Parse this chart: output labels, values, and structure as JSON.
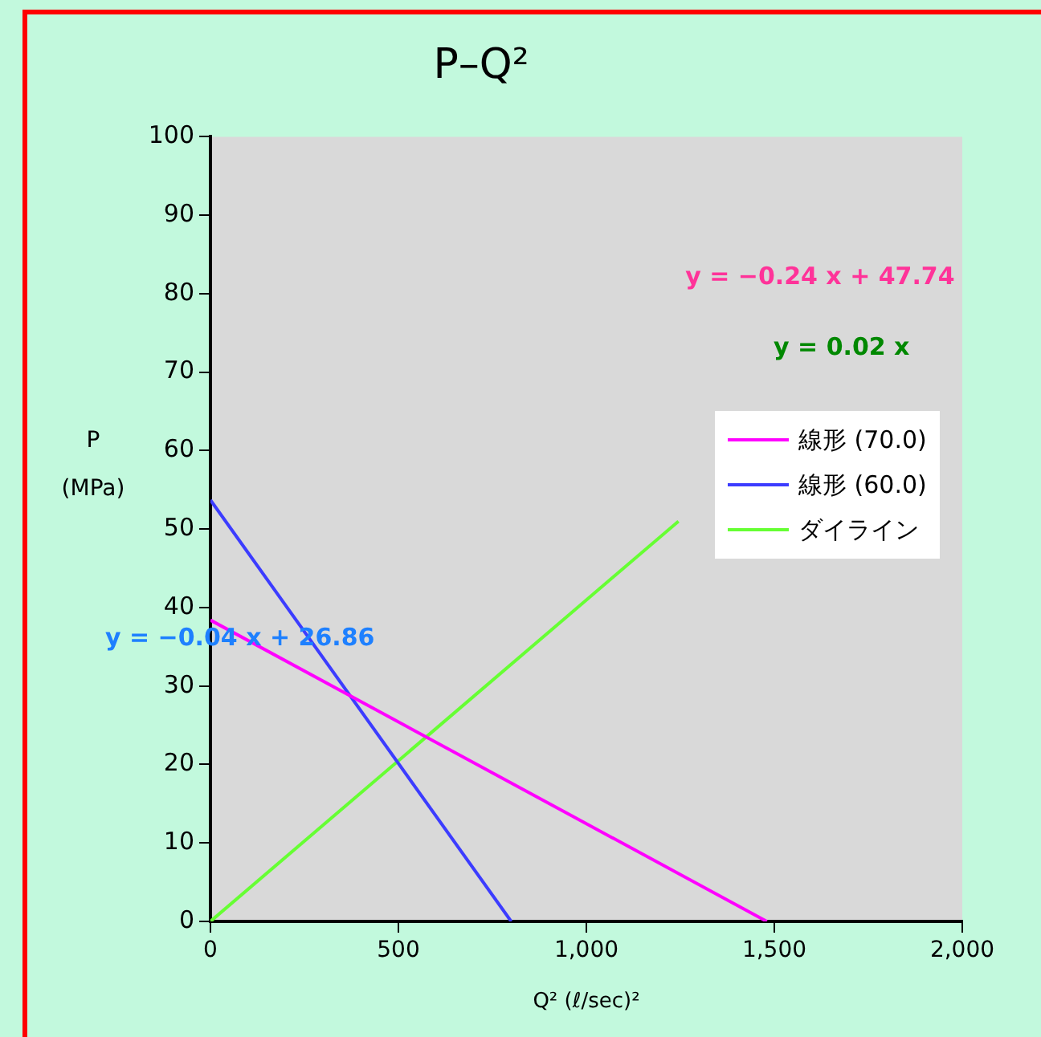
{
  "chart_data": {
    "type": "line",
    "title": "P–Q²",
    "xlabel": "Q² (ℓ/sec)²",
    "ylabel": "P\n(MPa)",
    "xlim": [
      0,
      2000
    ],
    "xticks": [
      0,
      500,
      {
        "value": 1000,
        "label": "1,000"
      },
      {
        "value": 1500,
        "label": "1,500"
      },
      {
        "value": 2000,
        "label": "2,000"
      }
    ],
    "ylim": [
      0,
      100
    ],
    "yticks": [
      0,
      10,
      20,
      30,
      40,
      50,
      60,
      70,
      80,
      90,
      100
    ],
    "series": [
      {
        "name": "線形 (70.0)",
        "color": "#ff00ff",
        "x": [
          0,
          1480
        ],
        "values": [
          38.4,
          0
        ]
      },
      {
        "name": "線形 (60.0)",
        "color": "#3c3cff",
        "x": [
          0,
          800
        ],
        "values": [
          53.7,
          0
        ]
      },
      {
        "name": "ダイライン",
        "color": "#66ff33",
        "x": [
          0,
          1245
        ],
        "values": [
          0,
          51
        ]
      }
    ],
    "annotations": [
      "y = −0.24 x + 47.74",
      "y = 0.02 x",
      "y = −0.04 x + 26.86"
    ],
    "legend": "top right",
    "grid": false,
    "marker": "none",
    "line_style": "solid"
  }
}
